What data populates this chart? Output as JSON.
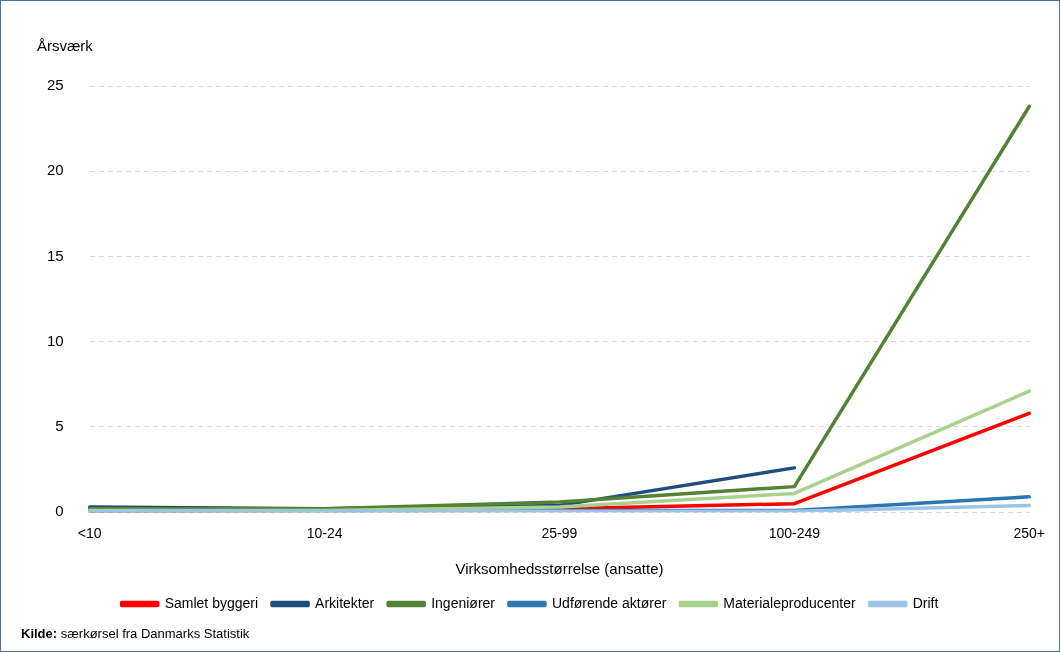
{
  "chart_data": {
    "type": "line",
    "ylabel": "Årsværk",
    "xlabel": "Virksomhedsstørrelse (ansatte)",
    "categories": [
      "<10",
      "10-24",
      "25-99",
      "100-249",
      "250+"
    ],
    "ylim": [
      0,
      25
    ],
    "yticks": [
      0,
      5,
      10,
      15,
      20,
      25
    ],
    "grid": "y",
    "legend": "bottom",
    "marker": "none",
    "series": [
      {
        "name": "Samlet byggeri",
        "color": "#ff0000",
        "values": [
          0.05,
          0.1,
          0.2,
          0.5,
          5.8
        ]
      },
      {
        "name": "Arkitekter",
        "color": "#1f4e79",
        "values": [
          0.3,
          0.2,
          0.4,
          2.6,
          null
        ]
      },
      {
        "name": "Ingeniører",
        "color": "#548235",
        "values": [
          0.2,
          0.2,
          0.6,
          1.5,
          23.8
        ]
      },
      {
        "name": "Udførende aktører",
        "color": "#2e75b6",
        "values": [
          0.05,
          0.05,
          0.1,
          0.1,
          0.9
        ]
      },
      {
        "name": "Materialeproducenter",
        "color": "#a9d18e",
        "values": [
          0.1,
          0.1,
          0.3,
          1.1,
          7.1
        ]
      },
      {
        "name": "Drift",
        "color": "#9dc3e6",
        "values": [
          0.05,
          0.05,
          0.05,
          0.05,
          0.4
        ]
      }
    ],
    "annotations": [
      "Kilde: særkørsel fra Danmarks Statistik"
    ]
  }
}
